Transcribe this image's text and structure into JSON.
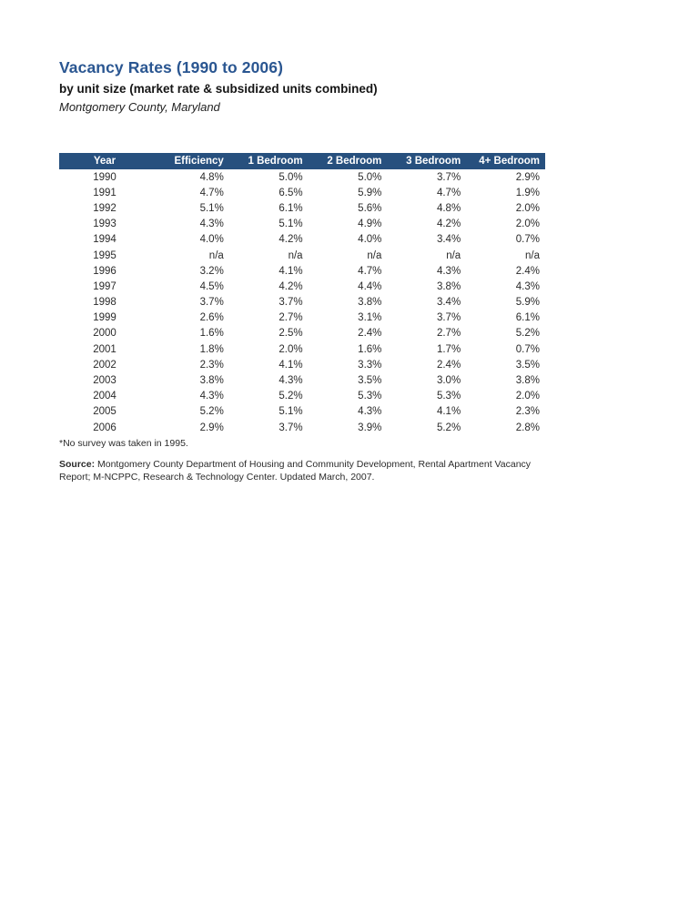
{
  "page": {
    "title": "Vacancy Rates (1990 to 2006)",
    "subtitle": "by unit size (market rate & subsidized units combined)",
    "location": "Montgomery County, Maryland"
  },
  "table": {
    "columns": [
      "Year",
      "Efficiency",
      "1 Bedroom",
      "2 Bedroom",
      "3 Bedroom",
      "4+ Bedroom"
    ],
    "rows": [
      [
        "1990",
        "4.8%",
        "5.0%",
        "5.0%",
        "3.7%",
        "2.9%"
      ],
      [
        "1991",
        "4.7%",
        "6.5%",
        "5.9%",
        "4.7%",
        "1.9%"
      ],
      [
        "1992",
        "5.1%",
        "6.1%",
        "5.6%",
        "4.8%",
        "2.0%"
      ],
      [
        "1993",
        "4.3%",
        "5.1%",
        "4.9%",
        "4.2%",
        "2.0%"
      ],
      [
        "1994",
        "4.0%",
        "4.2%",
        "4.0%",
        "3.4%",
        "0.7%"
      ],
      [
        "1995",
        "n/a",
        "n/a",
        "n/a",
        "n/a",
        "n/a"
      ],
      [
        "1996",
        "3.2%",
        "4.1%",
        "4.7%",
        "4.3%",
        "2.4%"
      ],
      [
        "1997",
        "4.5%",
        "4.2%",
        "4.4%",
        "3.8%",
        "4.3%"
      ],
      [
        "1998",
        "3.7%",
        "3.7%",
        "3.8%",
        "3.4%",
        "5.9%"
      ],
      [
        "1999",
        "2.6%",
        "2.7%",
        "3.1%",
        "3.7%",
        "6.1%"
      ],
      [
        "2000",
        "1.6%",
        "2.5%",
        "2.4%",
        "2.7%",
        "5.2%"
      ],
      [
        "2001",
        "1.8%",
        "2.0%",
        "1.6%",
        "1.7%",
        "0.7%"
      ],
      [
        "2002",
        "2.3%",
        "4.1%",
        "3.3%",
        "2.4%",
        "3.5%"
      ],
      [
        "2003",
        "3.8%",
        "4.3%",
        "3.5%",
        "3.0%",
        "3.8%"
      ],
      [
        "2004",
        "4.3%",
        "5.2%",
        "5.3%",
        "5.3%",
        "2.0%"
      ],
      [
        "2005",
        "5.2%",
        "5.1%",
        "4.3%",
        "4.1%",
        "2.3%"
      ],
      [
        "2006",
        "2.9%",
        "3.7%",
        "3.9%",
        "5.2%",
        "2.8%"
      ]
    ]
  },
  "footnote": "*No survey was taken in 1995.",
  "source": {
    "label": "Source:",
    "line1": " Montgomery County Department of Housing and Community Development, Rental Apartment Vacancy",
    "line2": "Report; M-NCPPC, Research & Technology Center. Updated March, 2007."
  },
  "colors": {
    "title_blue": "#2a5691",
    "header_bar_blue": "#27507e"
  }
}
